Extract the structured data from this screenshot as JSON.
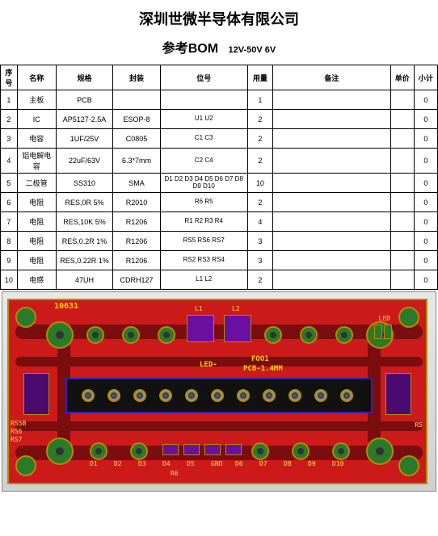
{
  "company_title": "深圳世微半导体有限公司",
  "doc_title": "参考BOM",
  "doc_subtitle": "12V-50V 6V",
  "headers": {
    "idx": "序号",
    "name": "名称",
    "spec": "规格",
    "pkg": "封装",
    "pos": "位号",
    "qty": "用量",
    "remark": "备注",
    "price": "单价",
    "sub": "小计"
  },
  "rows": [
    {
      "idx": "1",
      "name": "主板",
      "spec": "PCB",
      "pkg": "",
      "pos": "",
      "qty": "1",
      "remark": "",
      "price": "",
      "sub": "0"
    },
    {
      "idx": "2",
      "name": "IC",
      "spec": "AP5127-2.5A",
      "pkg": "ESOP-8",
      "pos": "U1 U2",
      "qty": "2",
      "remark": "",
      "price": "",
      "sub": "0"
    },
    {
      "idx": "3",
      "name": "电容",
      "spec": "1UF/25V",
      "pkg": "C0805",
      "pos": "C1 C3",
      "qty": "2",
      "remark": "",
      "price": "",
      "sub": "0"
    },
    {
      "idx": "4",
      "name": "铝电解电容",
      "spec": "22uF/63V",
      "pkg": "6.3*7mm",
      "pos": "C2 C4",
      "qty": "2",
      "remark": "",
      "price": "",
      "sub": "0"
    },
    {
      "idx": "5",
      "name": "二极管",
      "spec": "SS310",
      "pkg": "SMA",
      "pos": "D1 D2 D3 D4 D5 D6 D7 D8 D9 D10",
      "qty": "10",
      "remark": "",
      "price": "",
      "sub": "0"
    },
    {
      "idx": "6",
      "name": "电阻",
      "spec": "RES,0R 5%",
      "pkg": "R2010",
      "pos": "R6 R5",
      "qty": "2",
      "remark": "",
      "price": "",
      "sub": "0"
    },
    {
      "idx": "7",
      "name": "电阻",
      "spec": "RES,10K 5%",
      "pkg": "R1206",
      "pos": "R1 R2 R3 R4",
      "qty": "4",
      "remark": "",
      "price": "",
      "sub": "0"
    },
    {
      "idx": "8",
      "name": "电阻",
      "spec": "RES,0.2R 1%",
      "pkg": "R1206",
      "pos": "RS5 RS6 RS7",
      "qty": "3",
      "remark": "",
      "price": "",
      "sub": "0"
    },
    {
      "idx": "9",
      "name": "电阻",
      "spec": "RES,0.22R 1%",
      "pkg": "R1206",
      "pos": "RS2 RS3 RS4",
      "qty": "3",
      "remark": "",
      "price": "",
      "sub": "0"
    },
    {
      "idx": "10",
      "name": "电感",
      "spec": "47UH",
      "pkg": "CDRH127",
      "pos": "L1 L2",
      "qty": "2",
      "remark": "",
      "price": "",
      "sub": "0"
    }
  ],
  "pcb": {
    "top_label": "10631",
    "center_label1": "LED-",
    "center_label2": "FOO1",
    "center_label3": "PCB-1.4MM",
    "corner_labels": [
      "LED",
      "LED",
      "LED",
      "LED"
    ],
    "bottom_labels": [
      "D1",
      "D2",
      "D3",
      "D4",
      "D5",
      "GND",
      "D6",
      "D7",
      "D8",
      "D9",
      "D10"
    ],
    "left_labels": [
      "RS5B",
      "RS6",
      "RS7"
    ],
    "right_labels": [
      "R5",
      "R6"
    ],
    "ind_labels": [
      "L1",
      "L2"
    ]
  }
}
